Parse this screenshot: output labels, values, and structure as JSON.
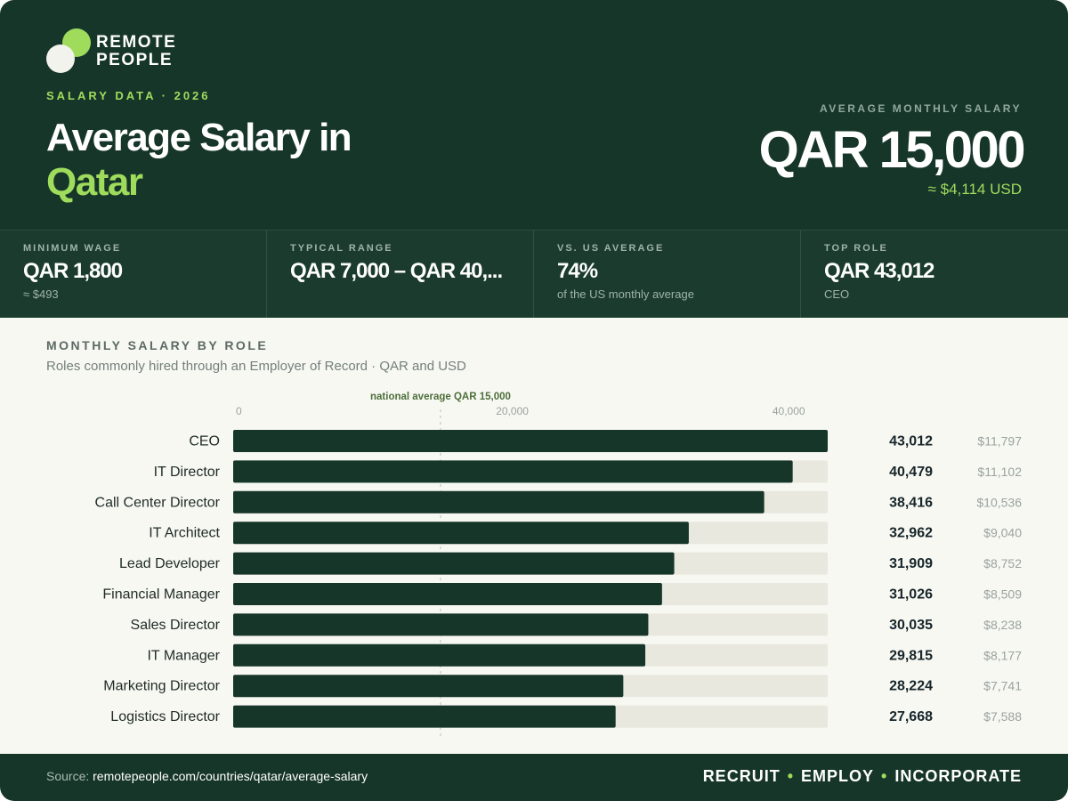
{
  "brand": {
    "name_line1": "REMOTE",
    "name_line2": "PEOPLE"
  },
  "header": {
    "eyebrow": "SALARY DATA · 2026",
    "title_line1": "Average Salary in",
    "title_line2": "Qatar",
    "avg_label": "AVERAGE MONTHLY SALARY",
    "avg_value": "QAR 15,000",
    "avg_usd": "≈ $4,114 USD"
  },
  "stats": [
    {
      "label": "MINIMUM WAGE",
      "value": "QAR 1,800",
      "sub": "≈ $493"
    },
    {
      "label": "TYPICAL RANGE",
      "value": "QAR 7,000 – QAR 40,...",
      "sub": ""
    },
    {
      "label": "VS. US AVERAGE",
      "value": "74%",
      "sub": "of the US monthly average"
    },
    {
      "label": "TOP ROLE",
      "value": "QAR 43,012",
      "sub": "CEO"
    }
  ],
  "section": {
    "title": "MONTHLY SALARY BY ROLE",
    "subtitle": "Roles commonly hired through an Employer of Record · QAR and USD"
  },
  "chart_data": {
    "type": "bar",
    "orientation": "horizontal",
    "categories": [
      "CEO",
      "IT Director",
      "Call Center Director",
      "IT Architect",
      "Lead Developer",
      "Financial Manager",
      "Sales Director",
      "IT Manager",
      "Marketing Director",
      "Logistics Director"
    ],
    "values": [
      43012,
      40479,
      38416,
      32962,
      31909,
      31026,
      30035,
      29815,
      28224,
      27668
    ],
    "value_labels": [
      "43,012",
      "40,479",
      "38,416",
      "32,962",
      "31,909",
      "31,026",
      "30,035",
      "29,815",
      "28,224",
      "27,668"
    ],
    "usd_labels": [
      "$11,797",
      "$11,102",
      "$10,536",
      "$9,040",
      "$8,752",
      "$8,509",
      "$8,238",
      "$8,177",
      "$7,741",
      "$7,588"
    ],
    "xlim": [
      0,
      43012
    ],
    "ticks": [
      0,
      20000,
      40000
    ],
    "tick_labels": [
      "0",
      "20,000",
      "40,000"
    ],
    "reference_line": {
      "value": 15000,
      "label": "national average QAR 15,000"
    },
    "colors": {
      "bar": "#17362a",
      "track": "#e8e8df",
      "reference": "#4c6f3a"
    }
  },
  "footer": {
    "source_prefix": "Source: ",
    "source_url": "remotepeople.com/countries/qatar/average-salary",
    "tag1": "RECRUIT",
    "tag2": "EMPLOY",
    "tag3": "INCORPORATE",
    "sep": "•"
  }
}
